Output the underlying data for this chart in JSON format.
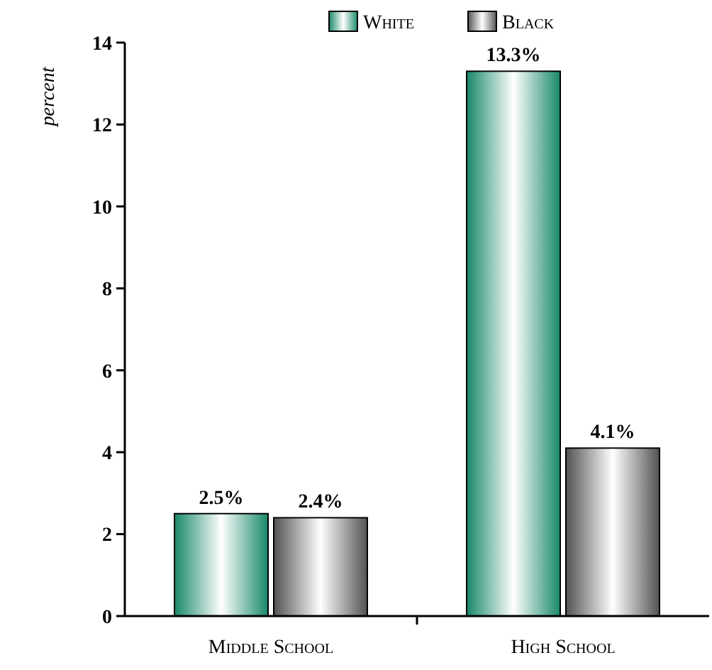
{
  "chart_data": {
    "type": "bar",
    "ylabel": "percent",
    "categories": [
      "Middle School",
      "High School"
    ],
    "series": [
      {
        "name": "White",
        "color": "#1b8a6b",
        "values": [
          2.5,
          13.3
        ],
        "value_labels": [
          "2.5%",
          "13.3%"
        ]
      },
      {
        "name": "Black",
        "color": "#555555",
        "values": [
          2.4,
          4.1
        ],
        "value_labels": [
          "2.4%",
          "4.1%"
        ]
      }
    ],
    "ylim": [
      0,
      14
    ],
    "yticks": [
      0,
      2,
      4,
      6,
      8,
      10,
      12,
      14
    ],
    "legend": "top",
    "grid": false
  }
}
